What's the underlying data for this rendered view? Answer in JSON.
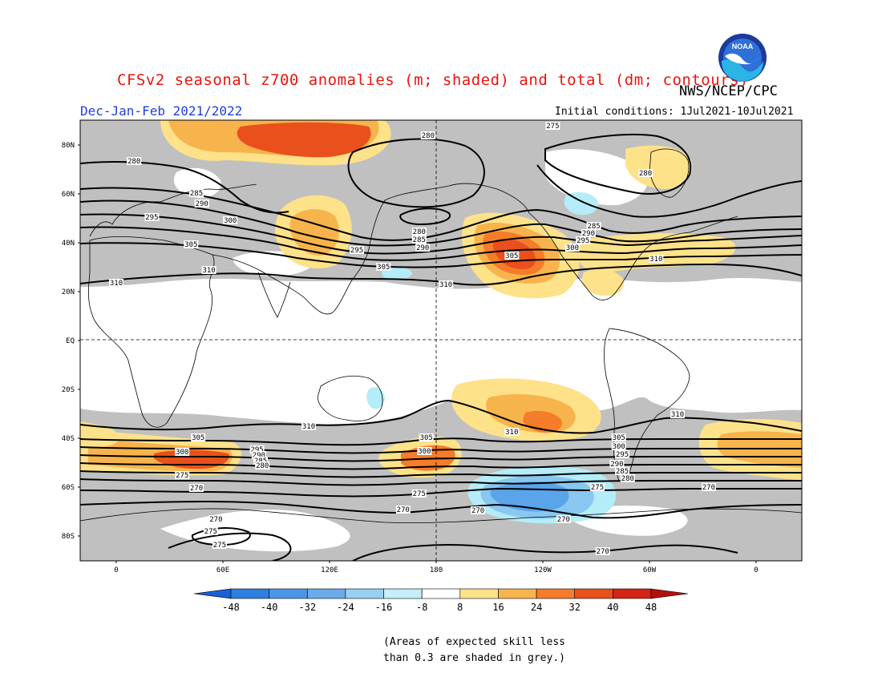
{
  "header": {
    "title": "CFSv2 seasonal z700 anomalies (m; shaded) and total (dm; contours)",
    "org": "NWS/NCEP/CPC",
    "season": "Dec-Jan-Feb 2021/2022",
    "initial_conditions": "Initial conditions: 1Jul2021-10Jul2021",
    "logo_text": "NOAA"
  },
  "map": {
    "lat_labels": [
      "80N",
      "60N",
      "40N",
      "20N",
      "EQ",
      "20S",
      "40S",
      "60S",
      "80S"
    ],
    "lon_labels": [
      "0",
      "60E",
      "120E",
      "180",
      "120W",
      "60W",
      "0"
    ],
    "colors": {
      "grey": "#c0c0c0",
      "pale_yellow": "#fde28a",
      "yellow_orange": "#f8b44c",
      "orange": "#f57c2a",
      "deep_orange": "#e9501c",
      "red": "#d32414",
      "light_cyan": "#b4ecf8",
      "light_blue": "#88c8f0",
      "blue": "#5aa4ea",
      "deep_blue": "#2f7fe0"
    },
    "contour_labels": [
      {
        "text": "280",
        "lon": 175
      },
      {
        "text": "280",
        "lon": 10
      },
      {
        "text": "275",
        "lon": 245
      },
      {
        "text": "280",
        "lon": 297
      },
      {
        "text": "285",
        "lon": 45
      },
      {
        "text": "290",
        "lon": 48
      },
      {
        "text": "295",
        "lon": 20
      },
      {
        "text": "300",
        "lon": 64
      },
      {
        "text": "305",
        "lon": 42
      },
      {
        "text": "310",
        "lon": 52
      },
      {
        "text": "295",
        "lon": 135
      },
      {
        "text": "305",
        "lon": 150
      },
      {
        "text": "280",
        "lon": 170
      },
      {
        "text": "285",
        "lon": 170
      },
      {
        "text": "290",
        "lon": 172
      },
      {
        "text": "310",
        "lon": 185
      },
      {
        "text": "285",
        "lon": 268
      },
      {
        "text": "290",
        "lon": 265
      },
      {
        "text": "295",
        "lon": 262
      },
      {
        "text": "300",
        "lon": 256
      },
      {
        "text": "305",
        "lon": 222
      },
      {
        "text": "310",
        "lon": 303
      },
      {
        "text": "310",
        "lon": 0
      },
      {
        "text": "310",
        "lon": 108
      },
      {
        "text": "310",
        "lon": 315
      },
      {
        "text": "310",
        "lon": 222
      },
      {
        "text": "305",
        "lon": 46
      },
      {
        "text": "300",
        "lon": 37
      },
      {
        "text": "295",
        "lon": 79
      },
      {
        "text": "290",
        "lon": 80
      },
      {
        "text": "285",
        "lon": 81
      },
      {
        "text": "280",
        "lon": 82
      },
      {
        "text": "275",
        "lon": 37
      },
      {
        "text": "270",
        "lon": 45
      },
      {
        "text": "305",
        "lon": 174
      },
      {
        "text": "300",
        "lon": 173
      },
      {
        "text": "275",
        "lon": 170
      },
      {
        "text": "270",
        "lon": 161
      },
      {
        "text": "305",
        "lon": 282
      },
      {
        "text": "300",
        "lon": 282
      },
      {
        "text": "295",
        "lon": 284
      },
      {
        "text": "290",
        "lon": 281
      },
      {
        "text": "285",
        "lon": 284
      },
      {
        "text": "280",
        "lon": 287
      },
      {
        "text": "275",
        "lon": 270
      },
      {
        "text": "270",
        "lon": 337
      },
      {
        "text": "270",
        "lon": 56
      },
      {
        "text": "275",
        "lon": 53
      },
      {
        "text": "275",
        "lon": 58
      },
      {
        "text": "270",
        "lon": 251
      },
      {
        "text": "270",
        "lon": 203
      },
      {
        "text": "270",
        "lon": 273
      }
    ]
  },
  "colorbar": {
    "labels": [
      "-48",
      "-40",
      "-32",
      "-24",
      "-16",
      "-8",
      "8",
      "16",
      "24",
      "32",
      "40",
      "48"
    ],
    "colors": [
      "#1a5fd6",
      "#2f7fe0",
      "#4b95e6",
      "#6aabec",
      "#98cff2",
      "#c4eefa",
      "#ffffff",
      "#fde28a",
      "#f8b44c",
      "#f57c2a",
      "#e9501c",
      "#d32414",
      "#b0100e"
    ]
  },
  "note": {
    "line1": "(Areas of expected skill less",
    "line2": "than 0.3 are shaded in grey.)"
  }
}
